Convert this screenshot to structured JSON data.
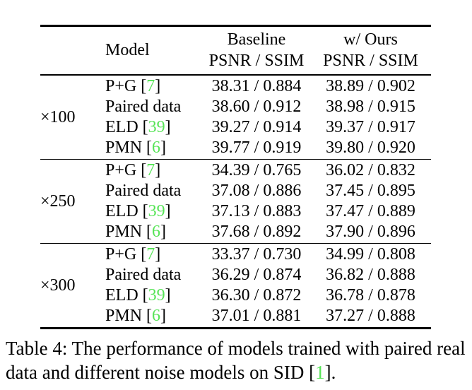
{
  "theme": {
    "background": "#ffffff",
    "text_color": "#000000",
    "citation_green": "#57e457"
  },
  "table": {
    "header": {
      "model_label": "Model",
      "baseline_line1": "Baseline",
      "baseline_line2": "PSNR / SSIM",
      "ours_line1": "w/ Ours",
      "ours_line2": "PSNR / SSIM"
    },
    "groups": [
      {
        "label": "×100",
        "rows": [
          {
            "model": "P+G",
            "bracket_open": " [",
            "cite": "7",
            "bracket_close": "]",
            "baseline": "38.31 / 0.884",
            "ours": "38.89 / 0.902"
          },
          {
            "model": "Paired data",
            "bracket_open": "",
            "cite": "",
            "bracket_close": "",
            "baseline": "38.60 / 0.912",
            "ours": "38.98 / 0.915"
          },
          {
            "model": "ELD",
            "bracket_open": " [",
            "cite": "39",
            "bracket_close": "]",
            "baseline": "39.27 / 0.914",
            "ours": "39.37 / 0.917"
          },
          {
            "model": "PMN",
            "bracket_open": " [",
            "cite": "6",
            "bracket_close": "]",
            "baseline": "39.77 / 0.919",
            "ours": "39.80 / 0.920"
          }
        ]
      },
      {
        "label": "×250",
        "rows": [
          {
            "model": "P+G",
            "bracket_open": " [",
            "cite": "7",
            "bracket_close": "]",
            "baseline": "34.39 / 0.765",
            "ours": "36.02 / 0.832"
          },
          {
            "model": "Paired data",
            "bracket_open": "",
            "cite": "",
            "bracket_close": "",
            "baseline": "37.08 / 0.886",
            "ours": "37.45 / 0.895"
          },
          {
            "model": "ELD",
            "bracket_open": " [",
            "cite": "39",
            "bracket_close": "]",
            "baseline": "37.13 / 0.883",
            "ours": "37.47 / 0.889"
          },
          {
            "model": "PMN",
            "bracket_open": " [",
            "cite": "6",
            "bracket_close": "]",
            "baseline": "37.68 / 0.892",
            "ours": "37.90 / 0.896"
          }
        ]
      },
      {
        "label": "×300",
        "rows": [
          {
            "model": "P+G",
            "bracket_open": " [",
            "cite": "7",
            "bracket_close": "]",
            "baseline": "33.37 / 0.730",
            "ours": "34.99 / 0.808"
          },
          {
            "model": "Paired data",
            "bracket_open": "",
            "cite": "",
            "bracket_close": "",
            "baseline": "36.29 / 0.874",
            "ours": "36.82 / 0.888"
          },
          {
            "model": "ELD",
            "bracket_open": " [",
            "cite": "39",
            "bracket_close": "]",
            "baseline": "36.30 / 0.872",
            "ours": "36.78 / 0.878"
          },
          {
            "model": "PMN",
            "bracket_open": " [",
            "cite": "6",
            "bracket_close": "]",
            "baseline": "37.01 / 0.881",
            "ours": "37.27 / 0.888"
          }
        ]
      }
    ]
  },
  "caption": {
    "line1": "Table 4: The performance of models trained with paired real",
    "line2_prefix": "data and different noise models on SID [",
    "cite": "1",
    "line2_suffix": "]."
  }
}
